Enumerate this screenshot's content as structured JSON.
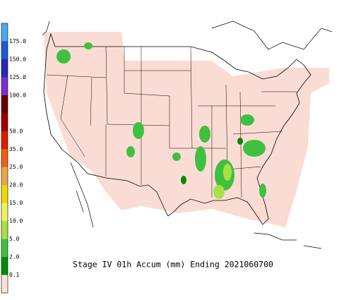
{
  "title": "Stage IV 01h Accum (mm) Ending 2021060700",
  "legend": {
    "labels": [
      "175.0",
      "150.0",
      "125.0",
      "100.0",
      "50.0",
      "35.0",
      "25.0",
      "20.0",
      "15.0",
      "10.0",
      "5.0",
      "2.0",
      "0.1"
    ],
    "colors": [
      "#4da6f0",
      "#1e5adc",
      "#2828b4",
      "#7a30c8",
      "#6a0000",
      "#a00000",
      "#d82000",
      "#f06010",
      "#e8a848",
      "#f0d800",
      "#f0f060",
      "#a8e048",
      "#40c040",
      "#008c00",
      "#fbe0d8"
    ]
  }
}
